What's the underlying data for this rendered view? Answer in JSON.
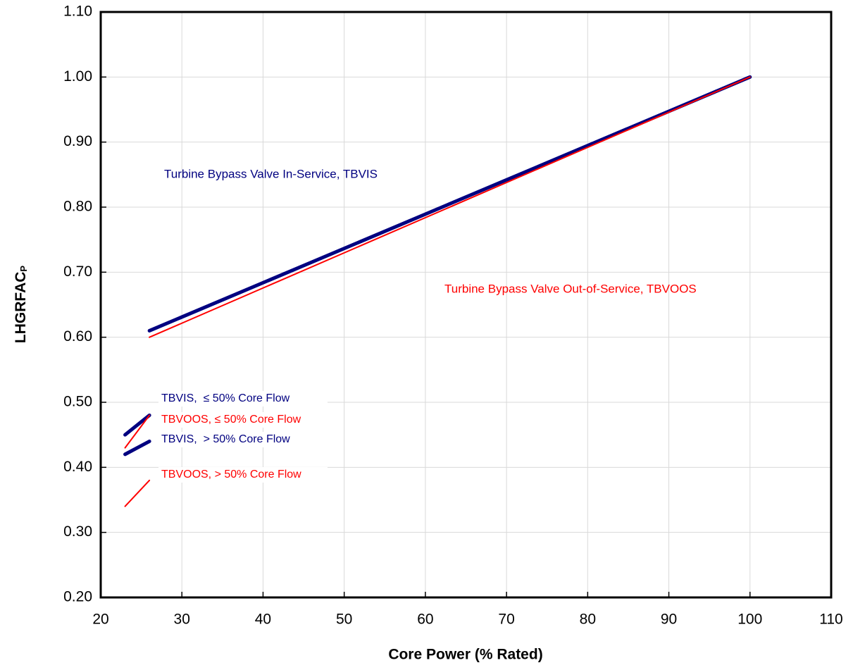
{
  "chart_data": {
    "type": "line",
    "xlabel": "Core Power (% Rated)",
    "ylabel": "LHGRFAC",
    "ylabel_sub": "P",
    "xlim": [
      20,
      110
    ],
    "xticks": [
      20,
      30,
      40,
      50,
      60,
      70,
      80,
      90,
      100,
      110
    ],
    "ylim": [
      0.2,
      1.1
    ],
    "yticks": [
      {
        "value": 0.2,
        "label": "0.20"
      },
      {
        "value": 0.3,
        "label": "0.30"
      },
      {
        "value": 0.4,
        "label": "0.40"
      },
      {
        "value": 0.5,
        "label": "0.50"
      },
      {
        "value": 0.6,
        "label": "0.60"
      },
      {
        "value": 0.7,
        "label": "0.70"
      },
      {
        "value": 0.8,
        "label": "0.80"
      },
      {
        "value": 0.9,
        "label": "0.90"
      },
      {
        "value": 1.0,
        "label": "1.00"
      },
      {
        "value": 1.1,
        "label": "1.10"
      }
    ],
    "grid": true,
    "series": [
      {
        "name": "Turbine Bypass Valve In-Service, TBVIS",
        "color": "#000080",
        "x": [
          26,
          100
        ],
        "values": [
          0.61,
          1.0
        ]
      },
      {
        "name": "Turbine Bypass Valve Out-of-Service, TBVOOS",
        "color": "#ff0000",
        "x": [
          26,
          100
        ],
        "values": [
          0.6,
          1.0
        ]
      },
      {
        "name": "TBVIS,  ≤ 50% Core Flow",
        "color": "#000080",
        "x": [
          23,
          26
        ],
        "values": [
          0.45,
          0.48
        ]
      },
      {
        "name": "TBVOOS, ≤ 50% Core Flow",
        "color": "#ff0000",
        "x": [
          23,
          26
        ],
        "values": [
          0.43,
          0.48
        ]
      },
      {
        "name": "TBVIS,  > 50% Core Flow",
        "color": "#000080",
        "x": [
          23,
          26
        ],
        "values": [
          0.42,
          0.44
        ]
      },
      {
        "name": "TBVOOS, > 50% Core Flow",
        "color": "#ff0000",
        "x": [
          23,
          26
        ],
        "values": [
          0.34,
          0.38
        ]
      }
    ]
  }
}
